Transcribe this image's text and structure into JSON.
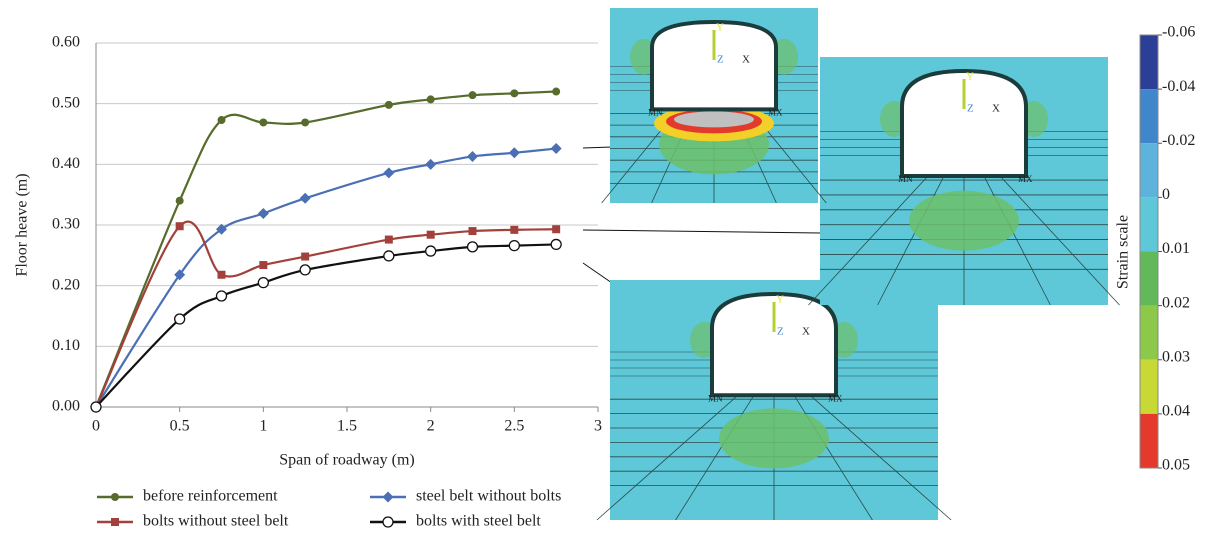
{
  "chart_data": {
    "type": "line",
    "x_label": "Span of roadway (m)",
    "y_label": "Floor heave (m)",
    "x": [
      0,
      0.5,
      0.75,
      1,
      1.25,
      1.75,
      2,
      2.25,
      2.5,
      2.75
    ],
    "series": [
      {
        "name": "before reinforcement",
        "color": "#566b2c",
        "marker": "circle",
        "values": [
          0,
          0.34,
          0.473,
          0.469,
          0.469,
          0.498,
          0.507,
          0.514,
          0.517,
          0.52
        ]
      },
      {
        "name": "steel belt without bolts",
        "color": "#4a6fb5",
        "marker": "diamond",
        "values": [
          0,
          0.218,
          0.293,
          0.319,
          0.344,
          0.386,
          0.4,
          0.413,
          0.419,
          0.426
        ]
      },
      {
        "name": "bolts without steel belt",
        "color": "#a2413b",
        "marker": "square",
        "values": [
          0,
          0.298,
          0.218,
          0.234,
          0.248,
          0.276,
          0.284,
          0.29,
          0.292,
          0.293
        ]
      },
      {
        "name": "bolts with steel belt",
        "color": "#111111",
        "marker": "open-circle",
        "values": [
          0,
          0.145,
          0.183,
          0.205,
          0.226,
          0.249,
          0.257,
          0.264,
          0.266,
          0.268
        ]
      }
    ],
    "xlim": [
      0,
      3
    ],
    "xticks": [
      0,
      0.5,
      1,
      1.5,
      2,
      2.5,
      3
    ],
    "ylim": [
      0,
      0.6
    ],
    "yticks": [
      {
        "value": 0,
        "label": "0.00"
      },
      {
        "value": 0.1,
        "label": "0.10"
      },
      {
        "value": 0.2,
        "label": "0.20"
      },
      {
        "value": 0.3,
        "label": "0.30"
      },
      {
        "value": 0.4,
        "label": "0.40"
      },
      {
        "value": 0.5,
        "label": "0.50"
      },
      {
        "value": 0.6,
        "label": "0.60"
      }
    ],
    "grid": true,
    "legend": "bottom",
    "colorbar": {
      "title": "Strain scale",
      "ticks": [
        -0.06,
        -0.04,
        -0.02,
        0,
        0.01,
        0.02,
        0.03,
        0.04,
        0.05
      ],
      "colors": [
        "#2b3f96",
        "#3f86cb",
        "#5eb3dc",
        "#5ec8d8",
        "#62b95a",
        "#8cc84a",
        "#c8d834",
        "#e43a2c"
      ]
    },
    "fem_labels": [
      "X",
      "Y",
      "Z",
      "MN",
      "MX"
    ]
  }
}
